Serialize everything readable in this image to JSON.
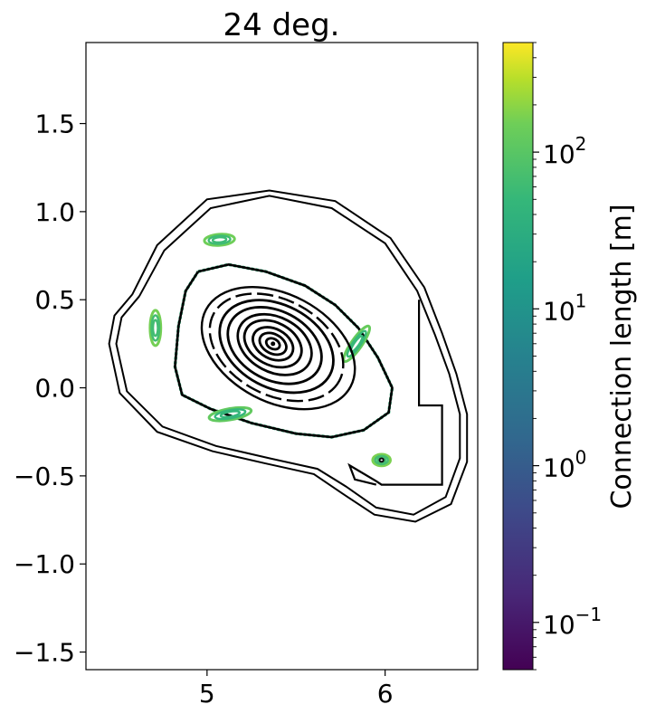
{
  "chart_data": {
    "type": "scatter",
    "title": "24 deg.",
    "xlabel": "",
    "ylabel": "",
    "xlim": [
      4.32,
      6.52
    ],
    "ylim": [
      -1.6,
      1.96
    ],
    "x_ticks": [
      5,
      6
    ],
    "x_tick_labels": [
      "5",
      "6"
    ],
    "y_ticks": [
      1.5,
      1.0,
      0.5,
      0.0,
      -0.5,
      -1.0,
      -1.5
    ],
    "y_tick_labels": [
      "1.5",
      "1.0",
      "0.5",
      "0.0",
      "−0.5",
      "−1.0",
      "−1.5"
    ],
    "grid": false,
    "colorbar": {
      "label": "Connection length [m]",
      "scale": "log",
      "range": [
        0.05,
        500
      ],
      "colormap": "viridis",
      "ticks": [
        0.1,
        1,
        10,
        100
      ],
      "tick_base": "10",
      "tick_exponents": [
        "−1",
        "0",
        "1",
        "2"
      ]
    },
    "magnetic_axis": [
      5.37,
      0.25
    ],
    "closed_surfaces": [
      {
        "cx": 5.37,
        "cy": 0.25,
        "rx": 0.04,
        "ry": 0.028,
        "angle": 28
      },
      {
        "cx": 5.37,
        "cy": 0.25,
        "rx": 0.08,
        "ry": 0.055,
        "angle": 28
      },
      {
        "cx": 5.37,
        "cy": 0.25,
        "rx": 0.12,
        "ry": 0.085,
        "angle": 28
      },
      {
        "cx": 5.37,
        "cy": 0.25,
        "rx": 0.17,
        "ry": 0.12,
        "angle": 28
      },
      {
        "cx": 5.38,
        "cy": 0.245,
        "rx": 0.22,
        "ry": 0.155,
        "angle": 28
      },
      {
        "cx": 5.38,
        "cy": 0.24,
        "rx": 0.28,
        "ry": 0.195,
        "angle": 28
      },
      {
        "cx": 5.39,
        "cy": 0.235,
        "rx": 0.34,
        "ry": 0.235,
        "angle": 28
      },
      {
        "cx": 5.39,
        "cy": 0.23,
        "rx": 0.4,
        "ry": 0.27,
        "angle": 28
      },
      {
        "cx": 5.4,
        "cy": 0.225,
        "rx": 0.46,
        "ry": 0.305,
        "angle": 28
      }
    ],
    "edge_boundary": [
      [
        4.95,
        0.66
      ],
      [
        5.12,
        0.7
      ],
      [
        5.33,
        0.66
      ],
      [
        5.55,
        0.58
      ],
      [
        5.72,
        0.47
      ],
      [
        5.85,
        0.34
      ],
      [
        5.96,
        0.17
      ],
      [
        6.04,
        0.0
      ],
      [
        6.02,
        -0.14
      ],
      [
        5.88,
        -0.24
      ],
      [
        5.7,
        -0.28
      ],
      [
        5.5,
        -0.26
      ],
      [
        5.25,
        -0.2
      ],
      [
        5.02,
        -0.12
      ],
      [
        4.86,
        -0.04
      ],
      [
        4.82,
        0.12
      ],
      [
        4.84,
        0.35
      ],
      [
        4.88,
        0.55
      ],
      [
        4.95,
        0.66
      ]
    ],
    "lcfs_inner": [
      [
        4.62,
        0.52
      ],
      [
        4.76,
        0.78
      ],
      [
        5.02,
        1.02
      ],
      [
        5.35,
        1.09
      ],
      [
        5.7,
        1.02
      ],
      [
        6.0,
        0.82
      ],
      [
        6.18,
        0.55
      ],
      [
        6.28,
        0.3
      ],
      [
        6.36,
        0.08
      ],
      [
        6.42,
        -0.15
      ],
      [
        6.42,
        -0.4
      ],
      [
        6.34,
        -0.62
      ],
      [
        6.16,
        -0.72
      ],
      [
        5.95,
        -0.68
      ],
      [
        5.78,
        -0.56
      ],
      [
        5.62,
        -0.46
      ],
      [
        5.35,
        -0.4
      ],
      [
        5.05,
        -0.33
      ],
      [
        4.75,
        -0.22
      ],
      [
        4.55,
        -0.02
      ],
      [
        4.49,
        0.25
      ],
      [
        4.52,
        0.4
      ],
      [
        4.62,
        0.52
      ]
    ],
    "lcfs_outer": [
      [
        4.58,
        0.53
      ],
      [
        4.72,
        0.81
      ],
      [
        5.0,
        1.07
      ],
      [
        5.35,
        1.12
      ],
      [
        5.72,
        1.06
      ],
      [
        6.03,
        0.85
      ],
      [
        6.22,
        0.57
      ],
      [
        6.32,
        0.31
      ],
      [
        6.4,
        0.08
      ],
      [
        6.46,
        -0.15
      ],
      [
        6.46,
        -0.42
      ],
      [
        6.37,
        -0.66
      ],
      [
        6.17,
        -0.76
      ],
      [
        5.94,
        -0.72
      ],
      [
        5.76,
        -0.6
      ],
      [
        5.6,
        -0.49
      ],
      [
        5.33,
        -0.43
      ],
      [
        5.03,
        -0.36
      ],
      [
        4.72,
        -0.25
      ],
      [
        4.51,
        -0.03
      ],
      [
        4.45,
        0.25
      ],
      [
        4.48,
        0.41
      ],
      [
        4.58,
        0.53
      ]
    ],
    "divertor_structure": [
      [
        6.19,
        0.5
      ],
      [
        6.19,
        -0.1
      ],
      [
        6.32,
        -0.1
      ],
      [
        6.32,
        -0.55
      ],
      [
        5.98,
        -0.55
      ],
      [
        5.95,
        -0.53
      ],
      [
        5.85,
        -0.47
      ],
      [
        5.8,
        -0.44
      ],
      [
        5.83,
        -0.52
      ],
      [
        5.95,
        -0.55
      ]
    ],
    "islands": [
      {
        "cx": 5.07,
        "cy": 0.84,
        "rx": 0.085,
        "ry": 0.032,
        "angle": -4,
        "level": 150
      },
      {
        "cx": 4.71,
        "cy": 0.34,
        "rx": 0.03,
        "ry": 0.1,
        "angle": 0,
        "level": 160
      },
      {
        "cx": 5.13,
        "cy": -0.15,
        "rx": 0.12,
        "ry": 0.032,
        "angle": -10,
        "level": 120
      },
      {
        "cx": 5.84,
        "cy": 0.25,
        "rx": 0.12,
        "ry": 0.03,
        "angle": -55,
        "level": 130
      },
      {
        "cx": 5.98,
        "cy": -0.41,
        "rx": 0.05,
        "ry": 0.033,
        "angle": 0,
        "level": 170
      }
    ],
    "island_chain_colored": {
      "outer_level": 40,
      "inner_level": 15
    }
  }
}
